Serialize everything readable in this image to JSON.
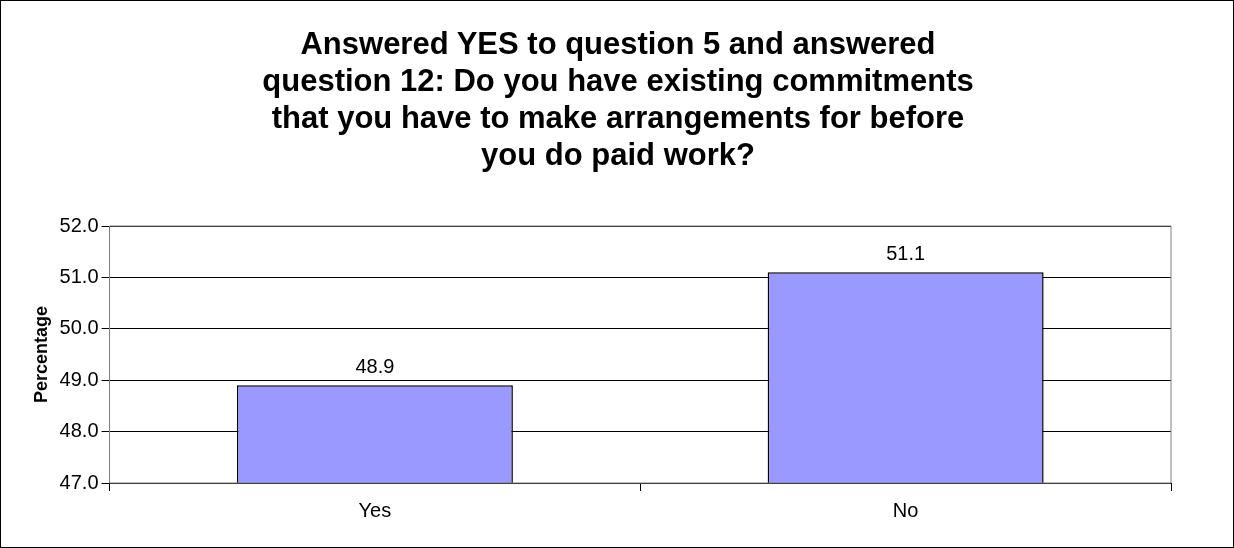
{
  "chart_data": {
    "type": "bar",
    "title": "Answered YES to question 5 and answered question 12: Do you have existing commitments that you have to make arrangements for before you do paid work?",
    "ylabel": "Percentage",
    "categories": [
      "Yes",
      "No"
    ],
    "values": [
      48.9,
      51.1
    ],
    "color": "#9999ff",
    "ylim": [
      47,
      52
    ],
    "yticks": [
      {
        "value": 47,
        "label": "47.0"
      },
      {
        "value": 48,
        "label": "48.0"
      },
      {
        "value": 49,
        "label": "49.0"
      },
      {
        "value": 50,
        "label": "50.0"
      },
      {
        "value": 51,
        "label": "51.0"
      },
      {
        "value": 52,
        "label": "52.0"
      }
    ],
    "grid": "y",
    "data_labels": true
  }
}
